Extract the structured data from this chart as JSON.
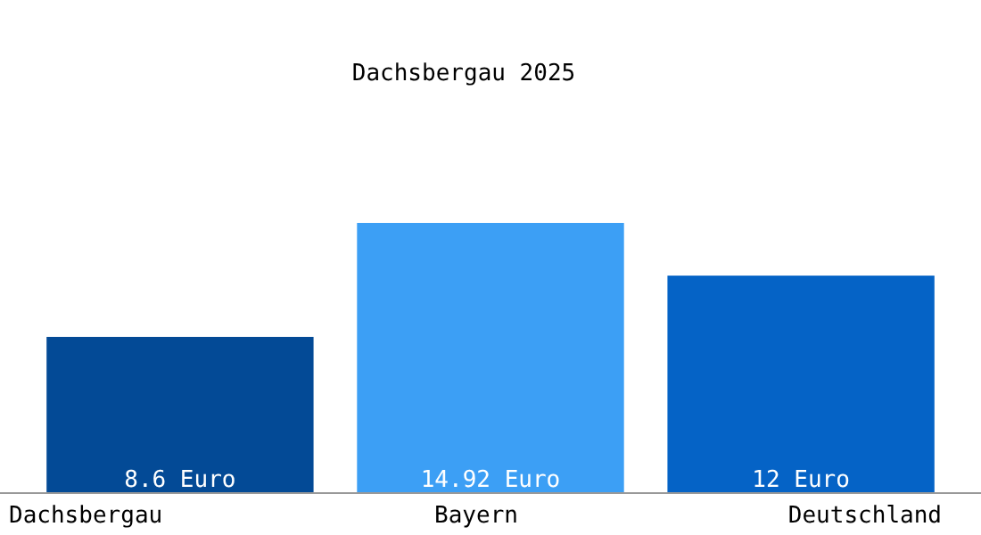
{
  "chart_data": {
    "type": "bar",
    "title": "Dachsbergau 2025",
    "categories": [
      "Dachsbergau",
      "Bayern",
      "Deutschland"
    ],
    "values": [
      8.6,
      14.92,
      12
    ],
    "colors": [
      "#034a96",
      "#3c9ff5",
      "#0563c6"
    ],
    "value_labels": [
      "8.6 Euro",
      "14.92 Euro",
      "12 Euro"
    ],
    "tick_labels": "x"
  }
}
